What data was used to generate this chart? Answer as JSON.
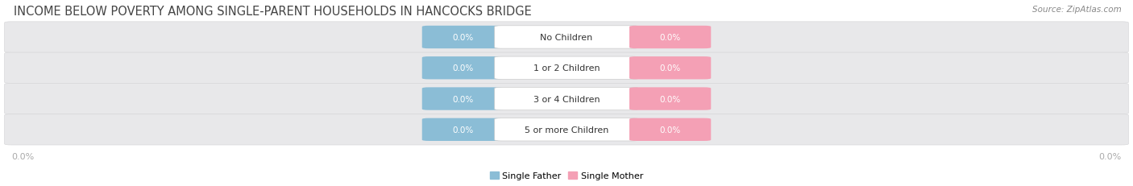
{
  "title": "INCOME BELOW POVERTY AMONG SINGLE-PARENT HOUSEHOLDS IN HANCOCKS BRIDGE",
  "source": "Source: ZipAtlas.com",
  "categories": [
    "No Children",
    "1 or 2 Children",
    "3 or 4 Children",
    "5 or more Children"
  ],
  "single_father_values": [
    0.0,
    0.0,
    0.0,
    0.0
  ],
  "single_mother_values": [
    0.0,
    0.0,
    0.0,
    0.0
  ],
  "father_color": "#8bbdd6",
  "mother_color": "#f4a0b5",
  "father_label": "Single Father",
  "mother_label": "Single Mother",
  "row_bg_color": "#e8e8ea",
  "row_bg_edge_color": "#d8d8da",
  "label_box_color": "white",
  "label_box_edge": "#cccccc",
  "title_fontsize": 10.5,
  "source_fontsize": 7.5,
  "bar_label_fontsize": 7.5,
  "cat_label_fontsize": 8.0,
  "tick_fontsize": 8.0,
  "tick_label_color": "#aaaaaa",
  "title_color": "#444444",
  "source_color": "#888888",
  "cat_label_color": "#333333",
  "bar_value_color": "white",
  "fig_width": 14.06,
  "fig_height": 2.32
}
